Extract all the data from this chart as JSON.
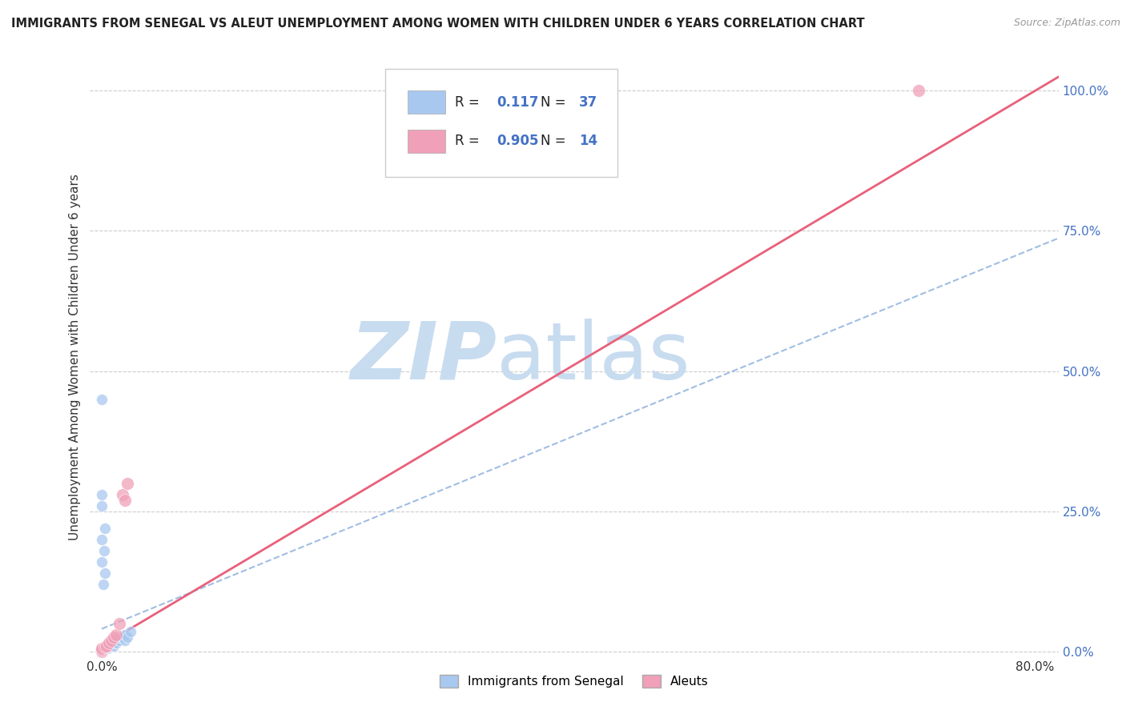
{
  "title": "IMMIGRANTS FROM SENEGAL VS ALEUT UNEMPLOYMENT AMONG WOMEN WITH CHILDREN UNDER 6 YEARS CORRELATION CHART",
  "source": "Source: ZipAtlas.com",
  "ylabel": "Unemployment Among Women with Children Under 6 years",
  "legend_label1": "Immigrants from Senegal",
  "legend_label2": "Aleuts",
  "R1": "0.117",
  "N1": "37",
  "R2": "0.905",
  "N2": "14",
  "color1": "#A8C8F0",
  "color2": "#F0A0B8",
  "line_color1": "#8AADDC",
  "line_color2": "#E8607A",
  "xlim": [
    -0.01,
    0.82
  ],
  "ylim": [
    -0.01,
    1.06
  ],
  "xtick_positions": [
    0.0,
    0.8
  ],
  "xticklabels": [
    "0.0%",
    "80.0%"
  ],
  "ytick_positions": [
    0.0,
    0.25,
    0.5,
    0.75,
    1.0
  ],
  "yticklabels": [
    "0.0%",
    "25.0%",
    "50.0%",
    "75.0%",
    "100.0%"
  ],
  "grid_color": "#CCCCCC",
  "watermark_zip": "ZIP",
  "watermark_atlas": "atlas",
  "background_color": "#FFFFFF",
  "senegal_x": [
    0.0,
    0.0,
    0.0,
    0.0,
    0.0,
    0.0,
    0.0,
    0.0,
    0.0,
    0.0,
    0.0,
    0.0,
    0.0,
    0.005,
    0.005,
    0.008,
    0.008,
    0.01,
    0.01,
    0.01,
    0.012,
    0.015,
    0.015,
    0.018,
    0.02,
    0.02,
    0.022,
    0.025,
    0.0,
    0.0,
    0.0,
    0.0,
    0.0,
    0.001,
    0.002,
    0.003,
    0.003
  ],
  "senegal_y": [
    0.0,
    0.0,
    0.0,
    0.0,
    0.0,
    0.0,
    0.0,
    0.001,
    0.001,
    0.002,
    0.002,
    0.003,
    0.004,
    0.005,
    0.008,
    0.01,
    0.015,
    0.01,
    0.015,
    0.02,
    0.015,
    0.02,
    0.025,
    0.025,
    0.02,
    0.03,
    0.025,
    0.035,
    0.45,
    0.2,
    0.26,
    0.16,
    0.28,
    0.12,
    0.18,
    0.14,
    0.22
  ],
  "aleut_x": [
    0.0,
    0.0,
    0.0,
    0.003,
    0.004,
    0.006,
    0.008,
    0.01,
    0.012,
    0.015,
    0.018,
    0.02,
    0.022,
    0.7
  ],
  "aleut_y": [
    0.0,
    0.003,
    0.005,
    0.008,
    0.01,
    0.015,
    0.02,
    0.025,
    0.03,
    0.05,
    0.28,
    0.27,
    0.3,
    1.0
  ],
  "trend1_x0": 0.0,
  "trend1_y0": 0.04,
  "trend1_x1": 0.8,
  "trend1_y1": 0.72,
  "trend2_x0": 0.0,
  "trend2_y0": 0.01,
  "trend2_x1": 0.8,
  "trend2_y1": 1.0
}
